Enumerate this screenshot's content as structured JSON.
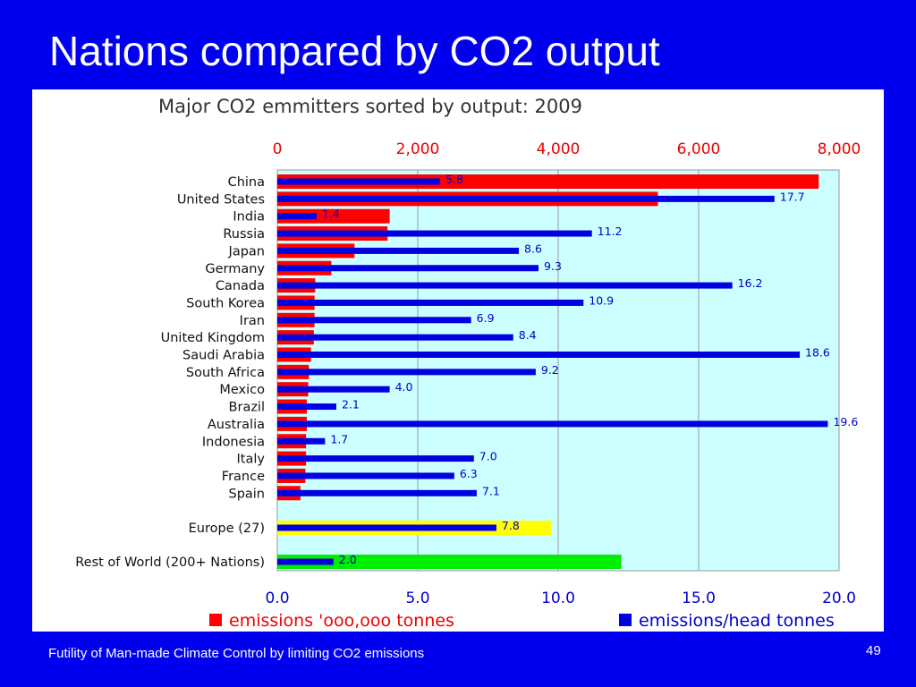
{
  "slide": {
    "title": "Nations compared by CO2 output",
    "footer": "Futility of Man-made Climate Control by limiting CO2 emissions",
    "page_number": "49"
  },
  "colors": {
    "background": "#0000ee",
    "emissions": "#ff0000",
    "per_head": "#0000e0",
    "europe": "#ffff00",
    "rest_of_world": "#00ee00",
    "plot_area": "#ccffff",
    "top_axis_text": "#ee0000",
    "bottom_axis_text": "#0000cc",
    "value_label_text": "#0000cc"
  },
  "chart_data": {
    "type": "bar",
    "orientation": "horizontal",
    "title": "Major CO2 emmitters sorted by output:  2009",
    "grid": true,
    "categories": [
      "China",
      "United States",
      "India",
      "Russia",
      "Japan",
      "Germany",
      "Canada",
      "South Korea",
      "Iran",
      "United Kingdom",
      "Saudi Arabia",
      "South Africa",
      "Mexico",
      "Brazil",
      "Australia",
      "Indonesia",
      "Italy",
      "France",
      "Spain",
      "Europe (27)",
      "Rest of World (200+ Nations)"
    ],
    "top_axis": {
      "ticks": [
        "0",
        "2,000",
        "4,000",
        "6,000",
        "8,000"
      ],
      "range": [
        0,
        8000
      ]
    },
    "bottom_axis": {
      "ticks": [
        "0.0",
        "5.0",
        "10.0",
        "15.0",
        "20.0"
      ],
      "range": [
        0,
        20
      ]
    },
    "series": [
      {
        "name": "emissions 'ooo,ooo tonnes",
        "axis": "top",
        "values": [
          7710,
          5420,
          1600,
          1570,
          1100,
          770,
          540,
          530,
          530,
          520,
          480,
          450,
          440,
          420,
          420,
          410,
          410,
          400,
          330,
          3900,
          4900
        ]
      },
      {
        "name": "emissions/head tonnes",
        "axis": "bottom",
        "values": [
          5.8,
          17.7,
          1.4,
          11.2,
          8.6,
          9.3,
          16.2,
          10.9,
          6.9,
          8.4,
          18.6,
          9.2,
          4.0,
          2.1,
          19.6,
          1.7,
          7.0,
          6.3,
          7.1,
          7.8,
          2.0
        ],
        "labels": [
          "5.8",
          "17.7",
          "1.4",
          "11.2",
          "8.6",
          "9.3",
          "16.2",
          "10.9",
          "6.9",
          "8.4",
          "18.6",
          "9.2",
          "4.0",
          "2.1",
          "19.6",
          "1.7",
          "7.0",
          "6.3",
          "7.1",
          "7.8",
          "2.0"
        ]
      }
    ],
    "legend": [
      {
        "label": "emissions 'ooo,ooo tonnes",
        "color": "#ff0000"
      },
      {
        "label": "emissions/head tonnes",
        "color": "#0000e0"
      }
    ],
    "legend_position": "bottom"
  }
}
